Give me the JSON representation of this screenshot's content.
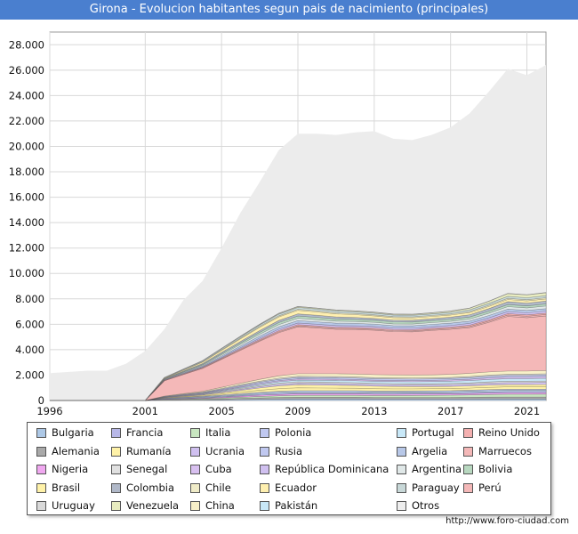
{
  "page": {
    "title": "Girona - Evolucion habitantes segun pais de nacimiento (principales)"
  },
  "footer": {
    "url": "http://www.foro-ciudad.com"
  },
  "chart_data": {
    "type": "area",
    "title": "Girona - Evolucion habitantes segun pais de nacimiento (principales)",
    "xlim": [
      1996,
      2022
    ],
    "ylim": [
      0,
      29000
    ],
    "yticks": [
      0,
      2000,
      4000,
      6000,
      8000,
      10000,
      12000,
      14000,
      16000,
      18000,
      20000,
      22000,
      24000,
      26000,
      28000
    ],
    "ytick_labels": [
      "0",
      "2.000",
      "4.000",
      "6.000",
      "8.000",
      "10.000",
      "12.000",
      "14.000",
      "16.000",
      "18.000",
      "20.000",
      "22.000",
      "24.000",
      "26.000",
      "28.000"
    ],
    "xticks": [
      1996,
      2001,
      2005,
      2009,
      2013,
      2017,
      2021
    ],
    "xtick_labels": [
      "1996",
      "2001",
      "2005",
      "2009",
      "2013",
      "2017",
      "2021"
    ],
    "grid": true,
    "stacked": true,
    "legend_position": "bottom",
    "x": [
      1996,
      1998,
      1999,
      2000,
      2001,
      2002,
      2003,
      2004,
      2005,
      2006,
      2007,
      2008,
      2009,
      2010,
      2011,
      2012,
      2013,
      2014,
      2015,
      2016,
      2017,
      2018,
      2019,
      2020,
      2021,
      2022
    ],
    "total": [
      2150,
      2350,
      2350,
      2900,
      3900,
      5600,
      7900,
      9400,
      12000,
      14800,
      17200,
      19700,
      21000,
      21000,
      20900,
      21100,
      21200,
      20600,
      20500,
      20900,
      21500,
      22600,
      24300,
      26100,
      25600,
      26400
    ],
    "series": [
      {
        "name": "Bulgaria",
        "color": "#adc8e6",
        "values": [
          0,
          0,
          0,
          0,
          0,
          10,
          20,
          30,
          50,
          70,
          90,
          100,
          110,
          110,
          110,
          110,
          100,
          100,
          100,
          100,
          100,
          100,
          110,
          110,
          110,
          110
        ]
      },
      {
        "name": "Alemania",
        "color": "#a9a9a9",
        "values": [
          0,
          0,
          0,
          0,
          0,
          40,
          60,
          70,
          80,
          100,
          120,
          140,
          150,
          150,
          150,
          150,
          140,
          140,
          140,
          140,
          140,
          150,
          160,
          170,
          170,
          170
        ]
      },
      {
        "name": "Nigeria",
        "color": "#f0a8f0",
        "values": [
          0,
          0,
          0,
          0,
          0,
          20,
          30,
          40,
          60,
          80,
          100,
          110,
          120,
          120,
          120,
          120,
          110,
          110,
          110,
          110,
          110,
          110,
          120,
          120,
          120,
          120
        ]
      },
      {
        "name": "Brasil",
        "color": "#fff2a8",
        "values": [
          0,
          0,
          0,
          0,
          0,
          20,
          30,
          40,
          80,
          120,
          160,
          200,
          220,
          210,
          200,
          190,
          180,
          170,
          160,
          160,
          160,
          170,
          180,
          190,
          190,
          190
        ]
      },
      {
        "name": "Uruguay",
        "color": "#d9d9d9",
        "values": [
          0,
          0,
          0,
          0,
          0,
          20,
          30,
          40,
          60,
          70,
          80,
          90,
          90,
          90,
          90,
          90,
          80,
          80,
          80,
          80,
          80,
          90,
          90,
          90,
          90,
          90
        ]
      },
      {
        "name": "Francia",
        "color": "#b8b8e8",
        "values": [
          0,
          0,
          0,
          0,
          0,
          30,
          40,
          50,
          60,
          70,
          80,
          90,
          90,
          90,
          90,
          90,
          90,
          90,
          90,
          90,
          90,
          100,
          100,
          110,
          110,
          110
        ]
      },
      {
        "name": "Rumanía",
        "color": "#fff2a8",
        "values": [
          0,
          0,
          0,
          0,
          0,
          20,
          40,
          60,
          100,
          140,
          180,
          220,
          240,
          230,
          220,
          210,
          200,
          190,
          180,
          170,
          170,
          170,
          170,
          170,
          170,
          170
        ]
      },
      {
        "name": "Senegal",
        "color": "#e0e0e0",
        "values": [
          0,
          0,
          0,
          0,
          0,
          20,
          30,
          40,
          60,
          80,
          90,
          100,
          110,
          110,
          110,
          100,
          100,
          100,
          100,
          100,
          100,
          100,
          110,
          110,
          110,
          110
        ]
      },
      {
        "name": "Colombia",
        "color": "#b0b8c8",
        "values": [
          0,
          0,
          0,
          0,
          0,
          30,
          50,
          70,
          100,
          120,
          140,
          160,
          170,
          170,
          160,
          150,
          140,
          140,
          140,
          150,
          160,
          180,
          200,
          230,
          220,
          230
        ]
      },
      {
        "name": "Venezuela",
        "color": "#e8ecc0",
        "values": [
          0,
          0,
          0,
          0,
          0,
          10,
          20,
          20,
          30,
          40,
          50,
          60,
          70,
          70,
          70,
          70,
          70,
          70,
          70,
          80,
          100,
          130,
          170,
          220,
          230,
          240
        ]
      },
      {
        "name": "Italia",
        "color": "#c8e6c0",
        "values": [
          0,
          0,
          0,
          0,
          0,
          30,
          40,
          50,
          70,
          90,
          110,
          130,
          150,
          150,
          150,
          150,
          150,
          150,
          160,
          170,
          180,
          190,
          200,
          210,
          210,
          220
        ]
      },
      {
        "name": "Ucrania",
        "color": "#d0c0f0",
        "values": [
          0,
          0,
          0,
          0,
          0,
          20,
          30,
          40,
          60,
          80,
          100,
          120,
          130,
          130,
          130,
          130,
          130,
          130,
          130,
          130,
          140,
          140,
          150,
          160,
          160,
          170
        ]
      },
      {
        "name": "Cuba",
        "color": "#d8c0f0",
        "values": [
          0,
          0,
          0,
          0,
          0,
          20,
          30,
          40,
          50,
          60,
          70,
          80,
          90,
          90,
          90,
          90,
          90,
          90,
          90,
          90,
          100,
          110,
          120,
          130,
          130,
          140
        ]
      },
      {
        "name": "Chile",
        "color": "#f0ecc8",
        "values": [
          0,
          0,
          0,
          0,
          0,
          20,
          30,
          40,
          50,
          60,
          70,
          80,
          80,
          80,
          80,
          80,
          80,
          80,
          80,
          80,
          80,
          80,
          90,
          90,
          90,
          90
        ]
      },
      {
        "name": "China",
        "color": "#f8f0c8",
        "values": [
          0,
          0,
          0,
          0,
          0,
          20,
          40,
          60,
          90,
          120,
          150,
          180,
          200,
          210,
          220,
          230,
          240,
          240,
          240,
          240,
          240,
          250,
          250,
          250,
          250,
          250
        ]
      },
      {
        "name": "Polonia",
        "color": "#c0c8f0",
        "values": [
          0,
          0,
          0,
          0,
          0,
          30,
          40,
          50,
          60,
          70,
          80,
          80,
          80,
          80,
          80,
          80,
          80,
          80,
          80,
          80,
          80,
          80,
          80,
          80,
          80,
          80
        ]
      },
      {
        "name": "Rusia",
        "color": "#c0c8f0",
        "values": [
          0,
          0,
          0,
          0,
          0,
          20,
          30,
          40,
          60,
          80,
          100,
          110,
          120,
          120,
          120,
          120,
          120,
          120,
          120,
          120,
          120,
          120,
          130,
          130,
          130,
          130
        ]
      },
      {
        "name": "República Dominicana",
        "color": "#d0c0f0",
        "values": [
          0,
          0,
          0,
          0,
          0,
          20,
          30,
          40,
          60,
          80,
          100,
          120,
          130,
          130,
          130,
          130,
          130,
          130,
          130,
          130,
          130,
          140,
          150,
          160,
          160,
          160
        ]
      },
      {
        "name": "Ecuador",
        "color": "#fff0b0",
        "values": [
          0,
          0,
          0,
          0,
          0,
          30,
          60,
          100,
          150,
          200,
          250,
          280,
          280,
          260,
          240,
          220,
          200,
          190,
          180,
          170,
          170,
          170,
          170,
          170,
          170,
          170
        ]
      },
      {
        "name": "Pakistán",
        "color": "#c8e8f8",
        "values": [
          0,
          0,
          0,
          0,
          0,
          10,
          20,
          30,
          50,
          70,
          90,
          110,
          130,
          140,
          150,
          150,
          150,
          150,
          150,
          160,
          170,
          180,
          190,
          200,
          200,
          210
        ]
      },
      {
        "name": "Portugal",
        "color": "#c8e8f8",
        "values": [
          0,
          0,
          0,
          0,
          0,
          20,
          30,
          40,
          50,
          60,
          70,
          80,
          80,
          80,
          80,
          80,
          80,
          80,
          80,
          80,
          80,
          80,
          90,
          90,
          90,
          90
        ]
      },
      {
        "name": "Argelia",
        "color": "#b8c8e8",
        "values": [
          0,
          0,
          0,
          0,
          0,
          30,
          50,
          70,
          100,
          130,
          160,
          180,
          190,
          190,
          190,
          190,
          180,
          180,
          180,
          180,
          180,
          180,
          190,
          190,
          190,
          190
        ]
      },
      {
        "name": "Argentina",
        "color": "#e0e8e8",
        "values": [
          0,
          0,
          0,
          0,
          0,
          30,
          50,
          70,
          100,
          130,
          150,
          170,
          180,
          170,
          160,
          150,
          150,
          140,
          140,
          140,
          150,
          160,
          180,
          200,
          200,
          210
        ]
      },
      {
        "name": "Paraguay",
        "color": "#c8d8d8",
        "values": [
          0,
          0,
          0,
          0,
          0,
          20,
          40,
          60,
          80,
          100,
          120,
          140,
          150,
          150,
          150,
          140,
          140,
          130,
          130,
          130,
          130,
          140,
          150,
          160,
          160,
          160
        ]
      },
      {
        "name": "Otros",
        "color": "#eeeeee",
        "values": [
          2150,
          2350,
          2350,
          2900,
          3900,
          4000,
          5800,
          6700,
          8600,
          10300,
          11700,
          12800,
          12600,
          12700,
          12650,
          12900,
          13150,
          12750,
          12650,
          13000,
          13350,
          14100,
          15300,
          16400,
          15900,
          16450
        ]
      },
      {
        "name": "Reino Unido",
        "color": "#f4b0b0",
        "values": [
          0,
          0,
          0,
          0,
          0,
          30,
          40,
          50,
          60,
          70,
          80,
          90,
          90,
          90,
          90,
          90,
          90,
          90,
          90,
          90,
          90,
          100,
          100,
          110,
          110,
          110
        ]
      },
      {
        "name": "Marruecos",
        "color": "#f4b8b8",
        "values": [
          0,
          0,
          0,
          0,
          0,
          1200,
          1500,
          1800,
          2200,
          2600,
          3000,
          3400,
          3700,
          3600,
          3500,
          3500,
          3500,
          3400,
          3400,
          3500,
          3550,
          3600,
          3900,
          4300,
          4200,
          4300
        ]
      },
      {
        "name": "Bolivia",
        "color": "#b8d8c0",
        "values": [
          0,
          0,
          0,
          0,
          0,
          20,
          40,
          60,
          90,
          120,
          150,
          170,
          180,
          180,
          170,
          170,
          160,
          160,
          160,
          160,
          160,
          160,
          160,
          160,
          160,
          160
        ]
      },
      {
        "name": "Perú",
        "color": "#f4b8b8",
        "values": [
          0,
          0,
          0,
          0,
          0,
          10,
          20,
          30,
          40,
          50,
          60,
          70,
          70,
          70,
          70,
          70,
          70,
          70,
          70,
          70,
          80,
          90,
          100,
          110,
          110,
          110
        ]
      }
    ]
  }
}
